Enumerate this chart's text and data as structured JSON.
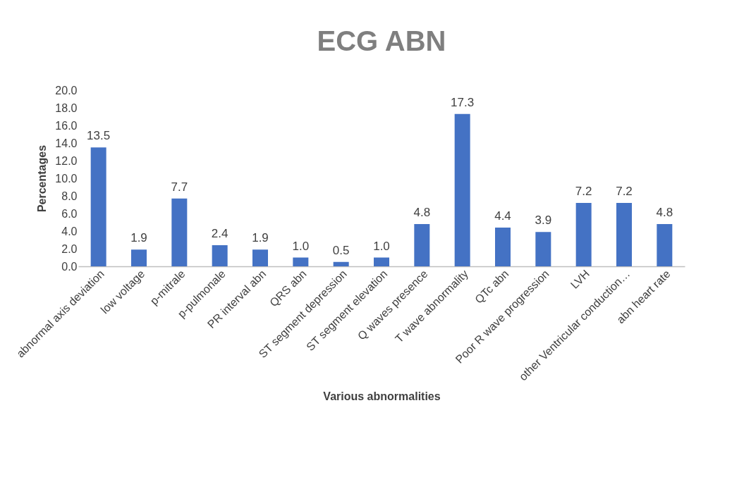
{
  "chart_data": {
    "type": "bar",
    "title": "ECG ABN",
    "xlabel": "Various abnormalities",
    "ylabel": "Percentages",
    "categories": [
      "abnormal axis deviation",
      "low voltage",
      "p-mitrale",
      "p-pulmonale",
      "PR interval abn",
      "QRS abn",
      "ST segment depression",
      "ST segment elevation",
      "Q waves presence",
      "T wave abnormality",
      "QTc abn",
      "Poor R wave progression",
      "LVH",
      "other Ventricular conduction…",
      "abn heart rate"
    ],
    "values": [
      13.5,
      1.9,
      7.7,
      2.4,
      1.9,
      1.0,
      0.5,
      1.0,
      4.8,
      17.3,
      4.4,
      3.9,
      7.2,
      7.2,
      4.8
    ],
    "value_labels": [
      "13.5",
      "1.9",
      "7.7",
      "2.4",
      "1.9",
      "1.0",
      "0.5",
      "1.0",
      "4.8",
      "17.3",
      "4.4",
      "3.9",
      "7.2",
      "7.2",
      "4.8"
    ],
    "color": "#4472c4",
    "ylim": [
      0,
      20
    ],
    "yticks": [
      {
        "value": 0,
        "label": "0.0"
      },
      {
        "value": 2,
        "label": "2.0"
      },
      {
        "value": 4,
        "label": "4.0"
      },
      {
        "value": 6,
        "label": "6.0"
      },
      {
        "value": 8,
        "label": "8.0"
      },
      {
        "value": 10,
        "label": "10.0"
      },
      {
        "value": 12,
        "label": "12.0"
      },
      {
        "value": 14,
        "label": "14.0"
      },
      {
        "value": 16,
        "label": "16.0"
      },
      {
        "value": 18,
        "label": "18.0"
      },
      {
        "value": 20,
        "label": "20.0"
      }
    ],
    "grid": false
  }
}
